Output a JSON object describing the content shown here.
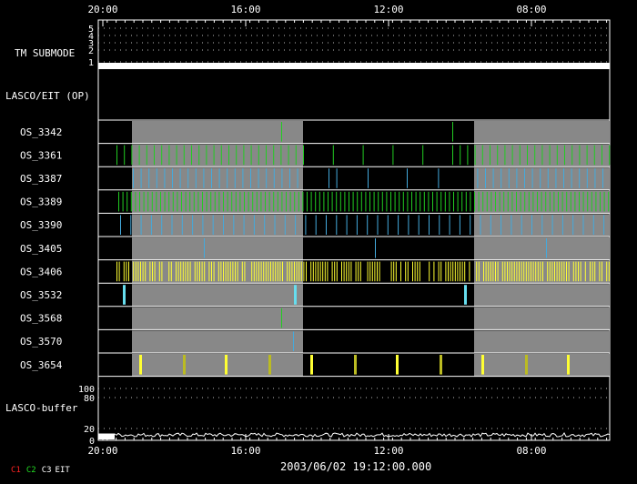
{
  "chart_data": {
    "type": "timeline",
    "time_axis": {
      "tick_labels": [
        "20:00",
        "16:00",
        "12:00",
        "08:00"
      ],
      "direction": "reversed"
    },
    "timestamp": "2003/06/02 19:12:00.000",
    "tm_submode": {
      "label": "TM SUBMODE",
      "levels": [
        "5",
        "4",
        "3",
        "2",
        "1"
      ],
      "value": 1
    },
    "section_label": "LASCO/EIT (OP)",
    "rows": [
      {
        "name": "OS_3342",
        "color": "#22cc22",
        "segment_count": 1
      },
      {
        "name": "OS_3361",
        "color": "#22cc22",
        "segment_count": 1
      },
      {
        "name": "OS_3387",
        "color": "#44aadd",
        "segment_count": 1
      },
      {
        "name": "OS_3389",
        "color": "#22cc22",
        "segment_count": 1
      },
      {
        "name": "OS_3390",
        "color": "#44aadd",
        "segment_count": 1
      },
      {
        "name": "OS_3405",
        "color": "#44aadd",
        "segment_count": 1
      },
      {
        "name": "OS_3406",
        "color": "#ffff33",
        "segment_count": 1
      },
      {
        "name": "OS_3532",
        "color": "#66ddee",
        "segment_count": 1
      },
      {
        "name": "OS_3568",
        "color": "#22cc22",
        "segment_count": 1
      },
      {
        "name": "OS_3570",
        "color": "#44aadd",
        "segment_count": 1
      },
      {
        "name": "OS_3654",
        "color": "#ffff33",
        "segment_count": 1
      }
    ],
    "buffer": {
      "label": "LASCO-buffer",
      "tick_labels": [
        "100",
        "80",
        "20",
        "0"
      ]
    },
    "legend": [
      {
        "label": "C1",
        "color": "#ff2222"
      },
      {
        "label": "C2",
        "color": "#22dd22"
      },
      {
        "label": "C3",
        "color": "#ffffff"
      },
      {
        "label": "EIT",
        "color": "#ffffff"
      }
    ]
  }
}
